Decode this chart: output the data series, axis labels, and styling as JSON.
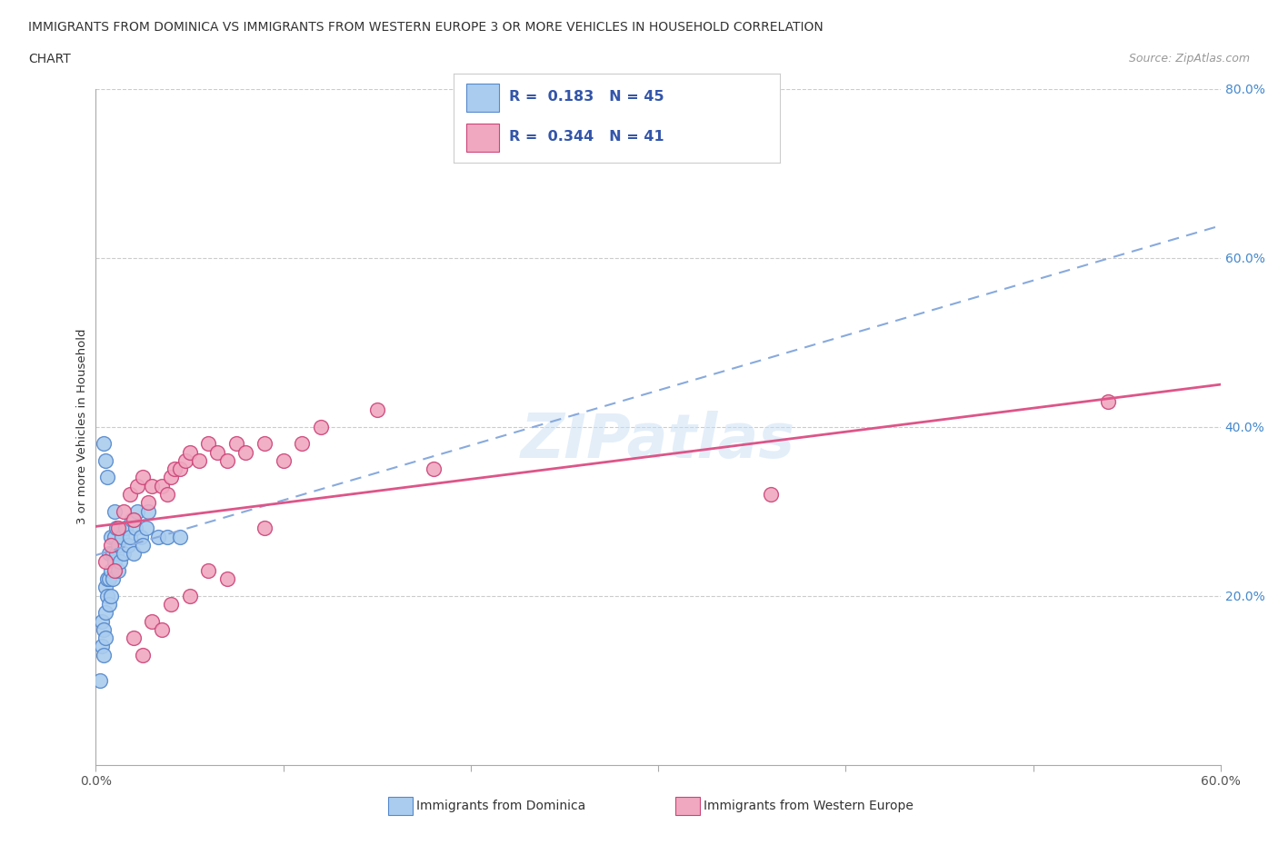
{
  "title_line1": "IMMIGRANTS FROM DOMINICA VS IMMIGRANTS FROM WESTERN EUROPE 3 OR MORE VEHICLES IN HOUSEHOLD CORRELATION",
  "title_line2": "CHART",
  "source_text": "Source: ZipAtlas.com",
  "ylabel": "3 or more Vehicles in Household",
  "xlim": [
    0.0,
    0.6
  ],
  "ylim": [
    0.0,
    0.8
  ],
  "xtick_vals": [
    0.0,
    0.1,
    0.2,
    0.3,
    0.4,
    0.5,
    0.6
  ],
  "xtick_show": [
    0.0,
    0.6
  ],
  "ytick_vals": [
    0.2,
    0.4,
    0.6,
    0.8
  ],
  "dominica_color": "#aaccee",
  "western_europe_color": "#f0a8c0",
  "dominica_edge_color": "#5588cc",
  "western_europe_edge_color": "#cc4477",
  "trendline_dominica_color": "#88aadd",
  "trendline_we_color": "#dd5588",
  "R_dominica": 0.183,
  "N_dominica": 45,
  "R_western_europe": 0.344,
  "N_western_europe": 41,
  "legend_color": "#3355aa",
  "watermark": "ZIPatlas",
  "dominica_x": [
    0.002,
    0.003,
    0.003,
    0.004,
    0.004,
    0.005,
    0.005,
    0.005,
    0.006,
    0.006,
    0.007,
    0.007,
    0.007,
    0.008,
    0.008,
    0.008,
    0.009,
    0.009,
    0.01,
    0.01,
    0.01,
    0.011,
    0.011,
    0.012,
    0.012,
    0.013,
    0.014,
    0.015,
    0.016,
    0.017,
    0.018,
    0.019,
    0.02,
    0.021,
    0.022,
    0.024,
    0.025,
    0.027,
    0.028,
    0.004,
    0.005,
    0.006,
    0.033,
    0.038,
    0.045
  ],
  "dominica_y": [
    0.1,
    0.14,
    0.17,
    0.13,
    0.16,
    0.15,
    0.18,
    0.21,
    0.22,
    0.2,
    0.19,
    0.22,
    0.25,
    0.2,
    0.23,
    0.27,
    0.22,
    0.25,
    0.24,
    0.27,
    0.3,
    0.25,
    0.28,
    0.23,
    0.26,
    0.24,
    0.27,
    0.25,
    0.28,
    0.26,
    0.27,
    0.29,
    0.25,
    0.28,
    0.3,
    0.27,
    0.26,
    0.28,
    0.3,
    0.38,
    0.36,
    0.34,
    0.27,
    0.27,
    0.27
  ],
  "western_europe_x": [
    0.005,
    0.008,
    0.01,
    0.012,
    0.015,
    0.018,
    0.02,
    0.022,
    0.025,
    0.028,
    0.03,
    0.035,
    0.038,
    0.04,
    0.042,
    0.045,
    0.048,
    0.05,
    0.055,
    0.06,
    0.065,
    0.07,
    0.075,
    0.08,
    0.09,
    0.1,
    0.11,
    0.12,
    0.15,
    0.18,
    0.02,
    0.025,
    0.03,
    0.035,
    0.04,
    0.05,
    0.06,
    0.07,
    0.09,
    0.54,
    0.36
  ],
  "western_europe_y": [
    0.24,
    0.26,
    0.23,
    0.28,
    0.3,
    0.32,
    0.29,
    0.33,
    0.34,
    0.31,
    0.33,
    0.33,
    0.32,
    0.34,
    0.35,
    0.35,
    0.36,
    0.37,
    0.36,
    0.38,
    0.37,
    0.36,
    0.38,
    0.37,
    0.38,
    0.36,
    0.38,
    0.4,
    0.42,
    0.35,
    0.15,
    0.13,
    0.17,
    0.16,
    0.19,
    0.2,
    0.23,
    0.22,
    0.28,
    0.43,
    0.32
  ],
  "grid_color": "#cccccc",
  "background_color": "#ffffff",
  "trendline_dominica_intercept": 0.248,
  "trendline_dominica_slope": 0.65,
  "trendline_we_intercept": 0.282,
  "trendline_we_slope": 0.28
}
